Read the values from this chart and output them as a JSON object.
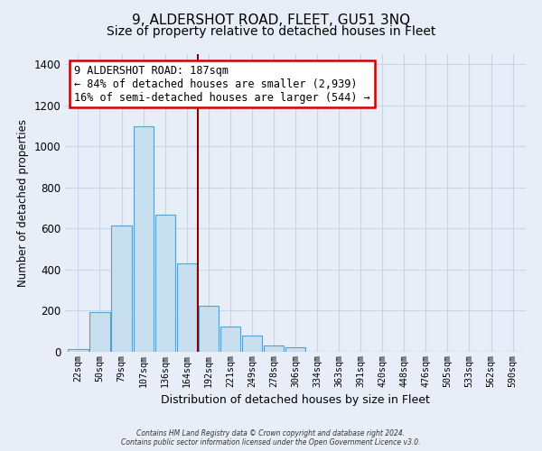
{
  "title": "9, ALDERSHOT ROAD, FLEET, GU51 3NQ",
  "subtitle": "Size of property relative to detached houses in Fleet",
  "xlabel": "Distribution of detached houses by size in Fleet",
  "ylabel": "Number of detached properties",
  "bar_labels": [
    "22sqm",
    "50sqm",
    "79sqm",
    "107sqm",
    "136sqm",
    "164sqm",
    "192sqm",
    "221sqm",
    "249sqm",
    "278sqm",
    "306sqm",
    "334sqm",
    "363sqm",
    "391sqm",
    "420sqm",
    "448sqm",
    "476sqm",
    "505sqm",
    "533sqm",
    "562sqm",
    "590sqm"
  ],
  "bar_values": [
    15,
    195,
    615,
    1100,
    670,
    430,
    225,
    125,
    78,
    30,
    22,
    0,
    0,
    0,
    0,
    0,
    0,
    0,
    0,
    0,
    0
  ],
  "bar_color": "#c8dff0",
  "bar_edge_color": "#5a9ec9",
  "property_line_color": "#8b0000",
  "annotation_text": "9 ALDERSHOT ROAD: 187sqm\n← 84% of detached houses are smaller (2,939)\n16% of semi-detached houses are larger (544) →",
  "annotation_box_color": "#ffffff",
  "annotation_border_color": "#cc0000",
  "ylim": [
    0,
    1450
  ],
  "yticks": [
    0,
    200,
    400,
    600,
    800,
    1000,
    1200,
    1400
  ],
  "footnote1": "Contains HM Land Registry data © Crown copyright and database right 2024.",
  "footnote2": "Contains public sector information licensed under the Open Government Licence v3.0.",
  "grid_color": "#c8d4e8",
  "background_color": "#e8eef8",
  "title_fontsize": 11,
  "subtitle_fontsize": 10
}
